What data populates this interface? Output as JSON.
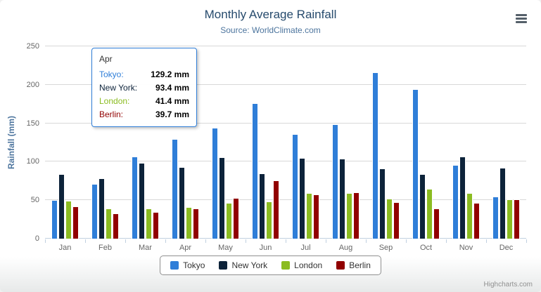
{
  "chart": {
    "title": "Monthly Average Rainfall",
    "subtitle": "Source: WorldClimate.com",
    "y_axis_title": "Rainfall (mm)",
    "credits": "Highcharts.com"
  },
  "chart_data": {
    "type": "bar",
    "title": "Monthly Average Rainfall",
    "subtitle": "Source: WorldClimate.com",
    "xlabel": "",
    "ylabel": "Rainfall (mm)",
    "ylim": [
      0,
      250
    ],
    "y_ticks": [
      0,
      50,
      100,
      150,
      200,
      250
    ],
    "grid": true,
    "legend_position": "bottom",
    "categories": [
      "Jan",
      "Feb",
      "Mar",
      "Apr",
      "May",
      "Jun",
      "Jul",
      "Aug",
      "Sep",
      "Oct",
      "Nov",
      "Dec"
    ],
    "series": [
      {
        "name": "Tokyo",
        "color": "#2f7ed8",
        "values": [
          49.9,
          71.5,
          106.4,
          129.2,
          144.0,
          176.0,
          135.6,
          148.5,
          216.4,
          194.1,
          95.6,
          54.4
        ]
      },
      {
        "name": "New York",
        "color": "#0d233a",
        "values": [
          83.6,
          78.8,
          98.5,
          93.4,
          106.0,
          84.5,
          105.0,
          104.3,
          91.2,
          83.5,
          106.6,
          92.3
        ]
      },
      {
        "name": "London",
        "color": "#8bbc21",
        "values": [
          48.9,
          38.8,
          39.3,
          41.4,
          47.0,
          48.3,
          59.0,
          59.6,
          52.4,
          65.2,
          59.3,
          51.2
        ]
      },
      {
        "name": "Berlin",
        "color": "#910000",
        "values": [
          42.4,
          33.2,
          34.5,
          39.7,
          52.6,
          75.5,
          57.4,
          60.4,
          47.6,
          39.1,
          46.8,
          51.1
        ]
      }
    ]
  },
  "tooltip": {
    "header": "Apr",
    "border_color": "#2f7ed8",
    "rows": [
      {
        "name": "Tokyo",
        "value": "129.2 mm",
        "color": "#2f7ed8"
      },
      {
        "name": "New York",
        "value": "93.4 mm",
        "color": "#0d233a"
      },
      {
        "name": "London",
        "value": "41.4 mm",
        "color": "#8bbc21"
      },
      {
        "name": "Berlin",
        "value": "39.7 mm",
        "color": "#910000"
      }
    ]
  }
}
